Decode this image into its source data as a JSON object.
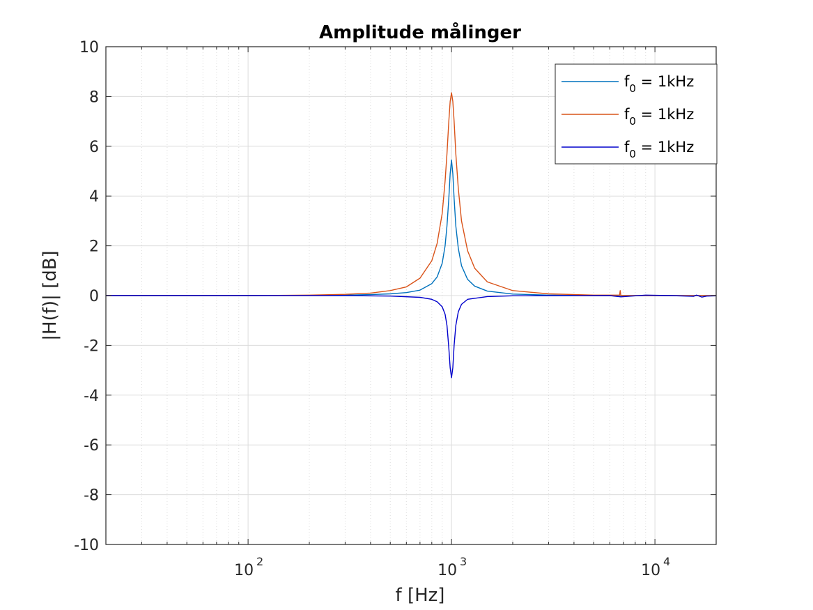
{
  "chart_data": {
    "type": "line",
    "title": "Amplitude målinger",
    "xlabel": "f [Hz]",
    "ylabel": "|H(f)| [dB]",
    "xscale": "log",
    "xlim": [
      20,
      20000
    ],
    "ylim": [
      -10,
      10
    ],
    "grid": true,
    "legend_position": "top-right",
    "xticks": [
      {
        "value": 100,
        "base": "10",
        "exp": "2"
      },
      {
        "value": 1000,
        "base": "10",
        "exp": "3"
      },
      {
        "value": 10000,
        "base": "10",
        "exp": "4"
      }
    ],
    "yticks": [
      "10",
      "8",
      "6",
      "4",
      "2",
      "0",
      "-2",
      "-4",
      "-6",
      "-8",
      "-10"
    ],
    "series": [
      {
        "legend": {
          "base": "f",
          "sub": "0",
          "rest": " = 1kHz"
        },
        "color": "#0072BD",
        "points": [
          [
            20,
            0
          ],
          [
            100,
            0
          ],
          [
            200,
            0.01
          ],
          [
            300,
            0.02
          ],
          [
            400,
            0.04
          ],
          [
            500,
            0.07
          ],
          [
            600,
            0.12
          ],
          [
            700,
            0.22
          ],
          [
            800,
            0.48
          ],
          [
            850,
            0.75
          ],
          [
            900,
            1.3
          ],
          [
            930,
            2.0
          ],
          [
            950,
            2.8
          ],
          [
            970,
            3.9
          ],
          [
            985,
            4.9
          ],
          [
            1000,
            5.45
          ],
          [
            1015,
            4.9
          ],
          [
            1030,
            3.9
          ],
          [
            1050,
            2.8
          ],
          [
            1080,
            1.9
          ],
          [
            1120,
            1.2
          ],
          [
            1200,
            0.65
          ],
          [
            1300,
            0.38
          ],
          [
            1500,
            0.18
          ],
          [
            2000,
            0.06
          ],
          [
            3000,
            0.02
          ],
          [
            5000,
            0.0
          ],
          [
            20000,
            0.0
          ]
        ]
      },
      {
        "legend": {
          "base": "f",
          "sub": "0",
          "rest": " = 1kHz"
        },
        "color": "#D95319",
        "points": [
          [
            20,
            0
          ],
          [
            100,
            0
          ],
          [
            200,
            0.02
          ],
          [
            300,
            0.05
          ],
          [
            400,
            0.1
          ],
          [
            500,
            0.2
          ],
          [
            600,
            0.35
          ],
          [
            700,
            0.7
          ],
          [
            800,
            1.4
          ],
          [
            850,
            2.1
          ],
          [
            900,
            3.3
          ],
          [
            930,
            4.6
          ],
          [
            950,
            5.7
          ],
          [
            970,
            7.0
          ],
          [
            985,
            7.8
          ],
          [
            1000,
            8.15
          ],
          [
            1015,
            7.8
          ],
          [
            1030,
            7.0
          ],
          [
            1050,
            5.7
          ],
          [
            1080,
            4.3
          ],
          [
            1120,
            3.0
          ],
          [
            1200,
            1.8
          ],
          [
            1300,
            1.1
          ],
          [
            1500,
            0.55
          ],
          [
            2000,
            0.2
          ],
          [
            3000,
            0.07
          ],
          [
            5000,
            0.02
          ],
          [
            6700,
            0.02
          ],
          [
            6750,
            0.2
          ],
          [
            6800,
            0.0
          ],
          [
            20000,
            0.0
          ]
        ]
      },
      {
        "legend": {
          "base": "f",
          "sub": "0",
          "rest": " = 1kHz"
        },
        "color": "#0000CC",
        "points": [
          [
            20,
            0
          ],
          [
            100,
            0
          ],
          [
            300,
            0
          ],
          [
            500,
            -0.02
          ],
          [
            700,
            -0.07
          ],
          [
            800,
            -0.15
          ],
          [
            850,
            -0.25
          ],
          [
            900,
            -0.45
          ],
          [
            930,
            -0.75
          ],
          [
            950,
            -1.2
          ],
          [
            970,
            -2.1
          ],
          [
            985,
            -2.9
          ],
          [
            1000,
            -3.3
          ],
          [
            1015,
            -2.9
          ],
          [
            1030,
            -2.0
          ],
          [
            1050,
            -1.2
          ],
          [
            1080,
            -0.65
          ],
          [
            1120,
            -0.35
          ],
          [
            1200,
            -0.15
          ],
          [
            1500,
            -0.04
          ],
          [
            2000,
            -0.01
          ],
          [
            6000,
            0
          ],
          [
            6800,
            -0.05
          ],
          [
            9000,
            0.02
          ],
          [
            12000,
            0
          ],
          [
            15500,
            -0.03
          ],
          [
            16000,
            0.02
          ],
          [
            17000,
            -0.06
          ],
          [
            18000,
            -0.02
          ],
          [
            20000,
            -0.01
          ]
        ]
      }
    ]
  }
}
